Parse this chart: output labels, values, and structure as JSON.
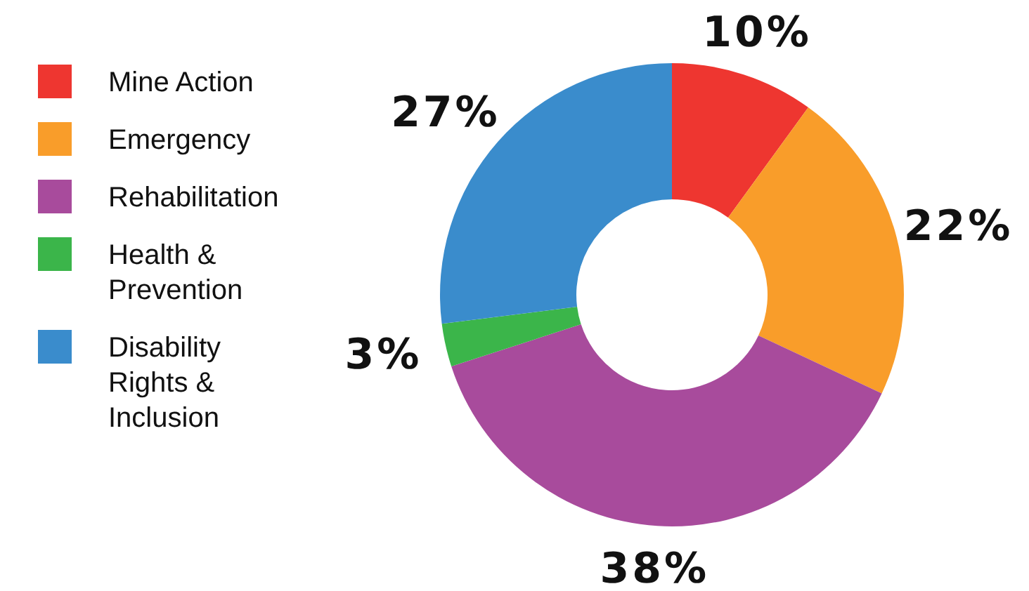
{
  "chart_data": {
    "type": "donut",
    "categories": [
      "Mine Action",
      "Emergency",
      "Rehabilitation",
      "Health & Prevention",
      "Disability Rights & Inclusion"
    ],
    "values": [
      10,
      22,
      38,
      3,
      27
    ],
    "colors": [
      "#ee3630",
      "#f99d2a",
      "#a84b9c",
      "#3bb54a",
      "#3a8ccc"
    ],
    "value_labels": [
      "10%",
      "22%",
      "38%",
      "3%",
      "27%"
    ],
    "legend": "left"
  }
}
